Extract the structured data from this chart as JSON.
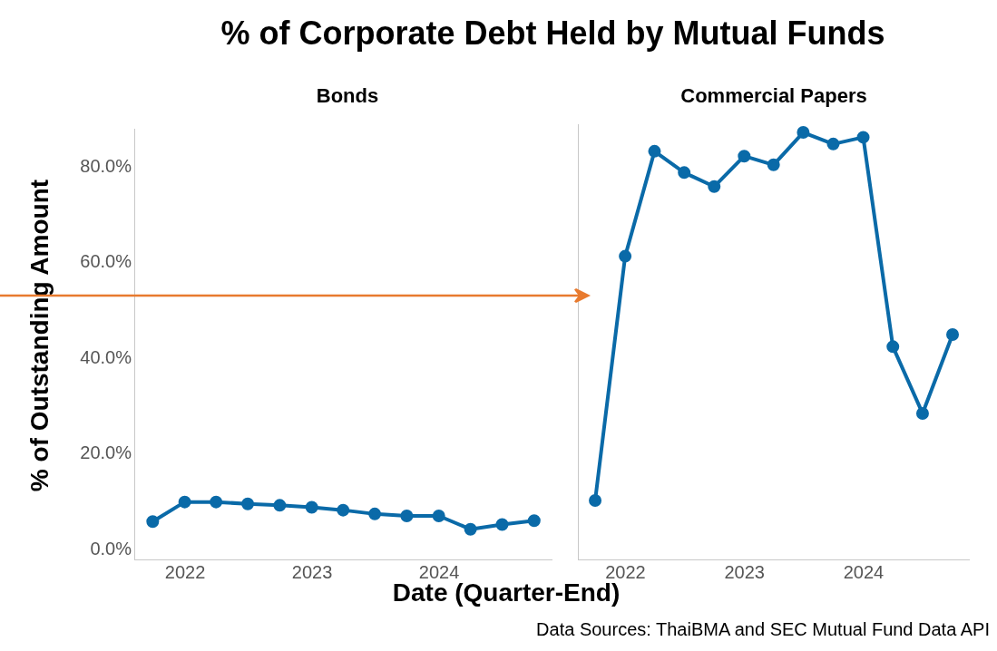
{
  "chart_data": [
    {
      "type": "line",
      "title": "% of Corporate Debt Held by Mutual Funds",
      "subtitle": "Bonds",
      "xlabel": "Date (Quarter-End)",
      "ylabel": "% of Outstanding Amount",
      "annotations": [
        "Data Sources: ThaiBMA and SEC Mutual Fund Data API"
      ],
      "x": [
        "2021-09-30",
        "2021-12-31",
        "2022-03-31",
        "2022-06-30",
        "2022-09-30",
        "2022-12-31",
        "2023-03-31",
        "2023-06-30",
        "2023-09-30",
        "2023-12-31",
        "2024-03-31",
        "2024-06-30",
        "2024-09-30"
      ],
      "series": [
        {
          "color": "#0a6aa8",
          "values": [
            5.9,
            10.0,
            10.0,
            9.6,
            9.3,
            8.9,
            8.3,
            7.5,
            7.1,
            7.1,
            4.3,
            5.3,
            6.1
          ]
        }
      ],
      "xlim": [
        "2021-08-08",
        "2024-11-19"
      ],
      "xticks": [
        {
          "value": "2022-01-01",
          "label": "2022"
        },
        {
          "value": "2023-01-01",
          "label": "2023"
        },
        {
          "value": "2024-01-01",
          "label": "2024"
        }
      ],
      "ylim": [
        -2,
        88
      ],
      "yticks": [
        {
          "value": 0,
          "label": "0.0%"
        },
        {
          "value": 20,
          "label": "20.0%"
        },
        {
          "value": 40,
          "label": "40.0%"
        },
        {
          "value": 60,
          "label": "60.0%"
        },
        {
          "value": 80,
          "label": "80.0%"
        }
      ],
      "grid": false,
      "legend": false,
      "marker": "circle",
      "line_style": "solid"
    },
    {
      "type": "line",
      "title": "Commercial Papers",
      "x": [
        "2021-09-30",
        "2021-12-31",
        "2022-03-31",
        "2022-06-30",
        "2022-09-30",
        "2022-12-31",
        "2023-03-31",
        "2023-06-30",
        "2023-09-30",
        "2023-12-31",
        "2024-03-31",
        "2024-06-30",
        "2024-09-30"
      ],
      "series": [
        {
          "color": "#0a6aa8",
          "values": [
            10.2,
            60.7,
            82.4,
            78.0,
            75.1,
            81.4,
            79.6,
            86.3,
            83.9,
            85.3,
            42.0,
            28.2,
            44.5
          ]
        }
      ],
      "xlim": [
        "2021-08-08",
        "2024-11-19"
      ],
      "xticks": [
        {
          "value": "2022-01-01",
          "label": "2022"
        },
        {
          "value": "2023-01-01",
          "label": "2023"
        },
        {
          "value": "2024-01-01",
          "label": "2024"
        }
      ],
      "ylim": [
        -2,
        88
      ],
      "yticks": [
        {
          "value": 0,
          "label": null
        },
        {
          "value": 20,
          "label": null
        },
        {
          "value": 40,
          "label": null
        },
        {
          "value": 60,
          "label": null
        },
        {
          "value": 80,
          "label": null
        }
      ],
      "tick_labels": "x",
      "grid": false,
      "legend": false,
      "marker": "circle",
      "line_style": "solid"
    }
  ]
}
